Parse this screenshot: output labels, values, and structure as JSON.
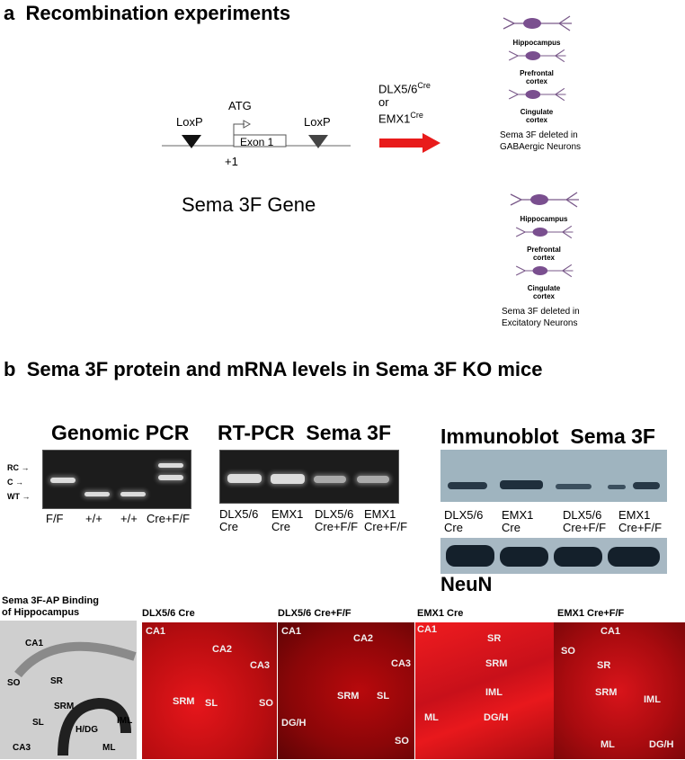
{
  "panel_a": {
    "letter": "a",
    "title": "Recombination experiments",
    "gene": {
      "loxp_left": "LoxP",
      "loxp_right": "LoxP",
      "atg": "ATG",
      "exon": "Exon 1",
      "plus1": "+1",
      "name": "Sema 3F Gene"
    },
    "cre_lines": [
      "DLX5/6",
      "or",
      "EMX1"
    ],
    "cre_sup": "Cre",
    "regions": [
      "Hippocampus",
      "Prefrontal",
      "cortex",
      "Cingulate",
      "cortex"
    ],
    "gaba_caption": [
      "Sema 3F deleted in",
      "GABAergic Neurons"
    ],
    "excit_caption": [
      "Sema 3F deleted in",
      "Excitatory Neurons"
    ]
  },
  "panel_b": {
    "letter": "b",
    "title": "Sema 3F protein and mRNA levels in Sema 3F KO mice",
    "pcr": {
      "title": "Genomic PCR",
      "markers": [
        "RC",
        "C",
        "WT"
      ],
      "lanes": [
        "F/F",
        "+/+",
        "+/+",
        "Cre+F/F"
      ]
    },
    "rtpcr": {
      "title": "RT-PCR  Sema 3F",
      "lanes": [
        [
          "DLX5/6",
          "Cre"
        ],
        [
          "EMX1",
          "Cre"
        ],
        [
          "DLX5/6",
          "Cre+F/F"
        ],
        [
          "EMX1",
          "Cre+F/F"
        ]
      ]
    },
    "immunoblot": {
      "title": "Immunoblot  Sema 3F",
      "lanes": [
        [
          "DLX5/6",
          "Cre"
        ],
        [
          "EMX1",
          "Cre"
        ],
        [
          "DLX5/6",
          "Cre+F/F"
        ],
        [
          "EMX1",
          "Cre+F/F"
        ]
      ],
      "loading_control": "NeuN"
    }
  },
  "hippocampus": {
    "ap_title": [
      "Sema 3F-AP Binding",
      "of Hippocampus"
    ],
    "ap_labels": [
      "CA1",
      "SO",
      "SR",
      "SRM",
      "SL",
      "CA3",
      "H/DG",
      "IML",
      "ML"
    ],
    "panels": [
      {
        "title": "DLX5/6 Cre",
        "labels": [
          "CA1",
          "CA2",
          "CA3",
          "SRM",
          "SL",
          "SO"
        ]
      },
      {
        "title": "DLX5/6 Cre+F/F",
        "labels": [
          "CA1",
          "CA2",
          "CA3",
          "SRM",
          "SL",
          "DG/H",
          "SO"
        ]
      },
      {
        "title": "EMX1 Cre",
        "labels": [
          "CA1",
          "SR",
          "SRM",
          "IML",
          "ML",
          "DG/H"
        ]
      },
      {
        "title": "EMX1 Cre+F/F",
        "labels": [
          "CA1",
          "SO",
          "SR",
          "SRM",
          "IML",
          "ML",
          "DG/H"
        ]
      }
    ]
  }
}
